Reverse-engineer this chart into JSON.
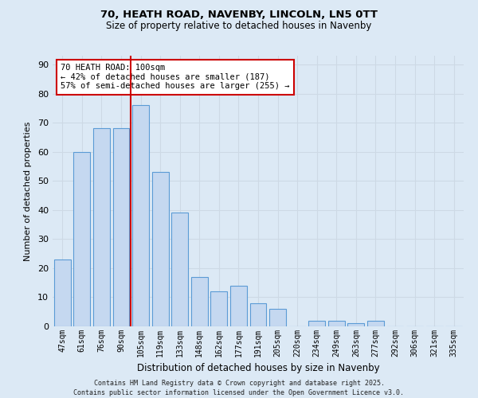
{
  "title1": "70, HEATH ROAD, NAVENBY, LINCOLN, LN5 0TT",
  "title2": "Size of property relative to detached houses in Navenby",
  "xlabel": "Distribution of detached houses by size in Navenby",
  "ylabel": "Number of detached properties",
  "categories": [
    "47sqm",
    "61sqm",
    "76sqm",
    "90sqm",
    "105sqm",
    "119sqm",
    "133sqm",
    "148sqm",
    "162sqm",
    "177sqm",
    "191sqm",
    "205sqm",
    "220sqm",
    "234sqm",
    "249sqm",
    "263sqm",
    "277sqm",
    "292sqm",
    "306sqm",
    "321sqm",
    "335sqm"
  ],
  "values": [
    23,
    60,
    68,
    68,
    76,
    53,
    39,
    17,
    12,
    14,
    8,
    6,
    0,
    2,
    2,
    1,
    2,
    0,
    0,
    0,
    0
  ],
  "bar_color": "#c5d8f0",
  "bar_edge_color": "#5b9bd5",
  "vline_index": 4,
  "vline_color": "#cc0000",
  "annotation_text": "70 HEATH ROAD: 100sqm\n← 42% of detached houses are smaller (187)\n57% of semi-detached houses are larger (255) →",
  "annotation_box_color": "#ffffff",
  "annotation_edge_color": "#cc0000",
  "ylim": [
    0,
    93
  ],
  "yticks": [
    0,
    10,
    20,
    30,
    40,
    50,
    60,
    70,
    80,
    90
  ],
  "grid_color": "#cdd9e5",
  "background_color": "#dce9f5",
  "footer": "Contains HM Land Registry data © Crown copyright and database right 2025.\nContains public sector information licensed under the Open Government Licence v3.0."
}
